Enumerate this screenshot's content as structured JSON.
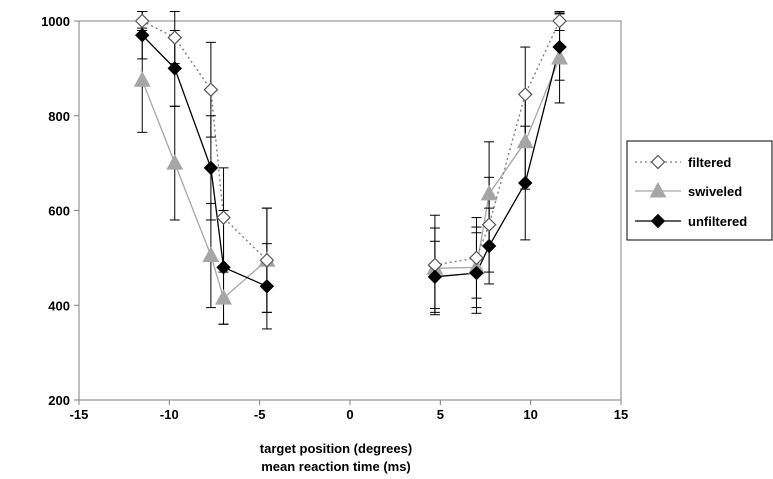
{
  "chart_data": {
    "type": "line",
    "xlabel": "target position (degrees)",
    "ylabel": "",
    "caption": "mean reaction time (ms)",
    "xlim": [
      -15,
      15
    ],
    "ylim": [
      200,
      1000
    ],
    "xticks": [
      -15,
      -10,
      -5,
      0,
      5,
      10,
      15
    ],
    "yticks": [
      200,
      400,
      600,
      800,
      1000
    ],
    "grid": false,
    "legend_position": "right",
    "series": [
      {
        "name": "filtered",
        "marker": "open-diamond",
        "line": "dotted",
        "color": "#7f7f7f",
        "segments": [
          [
            {
              "x": -11.5,
              "y": 1000,
              "err": 20
            },
            {
              "x": -9.7,
              "y": 965,
              "err": 55
            },
            {
              "x": -7.7,
              "y": 855,
              "err": 100
            },
            {
              "x": -7.0,
              "y": 585,
              "err": 105
            },
            {
              "x": -4.6,
              "y": 495,
              "err": 110
            }
          ],
          [
            {
              "x": 4.7,
              "y": 485,
              "err": 105
            },
            {
              "x": 7.0,
              "y": 500,
              "err": 85
            },
            {
              "x": 7.7,
              "y": 570,
              "err": 100
            },
            {
              "x": 9.7,
              "y": 845,
              "err": 100
            },
            {
              "x": 11.6,
              "y": 1000,
              "err": 20
            }
          ]
        ]
      },
      {
        "name": "swiveled",
        "marker": "triangle",
        "line": "solid",
        "color": "#a6a6a6",
        "segments": [
          [
            {
              "x": -11.5,
              "y": 875,
              "err": 110
            },
            {
              "x": -9.7,
              "y": 700,
              "err": 120
            },
            {
              "x": -7.7,
              "y": 505,
              "err": 110
            },
            {
              "x": -7.0,
              "y": 415,
              "err": 55
            },
            {
              "x": -4.6,
              "y": 495,
              "err": 110
            }
          ],
          [
            {
              "x": 4.7,
              "y": 478,
              "err": 85
            },
            {
              "x": 7.0,
              "y": 480,
              "err": 85
            },
            {
              "x": 7.7,
              "y": 635,
              "err": 110
            },
            {
              "x": 9.7,
              "y": 745,
              "err": 100
            },
            {
              "x": 11.6,
              "y": 922,
              "err": 95
            }
          ]
        ]
      },
      {
        "name": "unfiltered",
        "marker": "filled-diamond",
        "line": "solid",
        "color": "#000000",
        "segments": [
          [
            {
              "x": -11.5,
              "y": 970,
              "err": 50
            },
            {
              "x": -9.7,
              "y": 900,
              "err": 80
            },
            {
              "x": -7.7,
              "y": 690,
              "err": 110
            },
            {
              "x": -7.0,
              "y": 480,
              "err": 120
            },
            {
              "x": -4.6,
              "y": 440,
              "err": 90
            }
          ],
          [
            {
              "x": 4.7,
              "y": 460,
              "err": 75
            },
            {
              "x": 7.0,
              "y": 468,
              "err": 85
            },
            {
              "x": 7.7,
              "y": 525,
              "err": 80
            },
            {
              "x": 9.7,
              "y": 658,
              "err": 120
            },
            {
              "x": 11.6,
              "y": 945,
              "err": 70
            }
          ]
        ]
      }
    ]
  }
}
